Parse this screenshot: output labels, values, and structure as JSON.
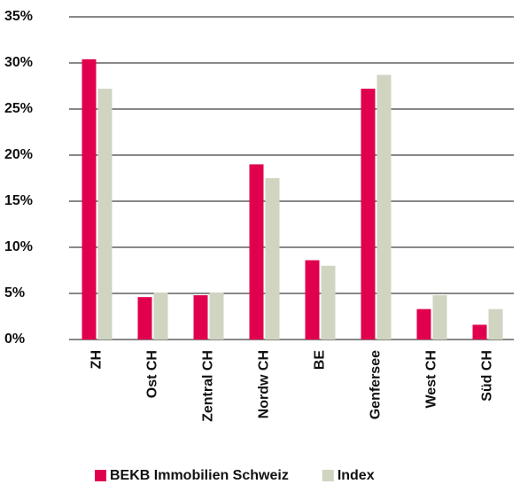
{
  "chart_data": {
    "type": "bar",
    "categories": [
      "ZH",
      "Ost CH",
      "Zentral CH",
      "Nordw CH",
      "BE",
      "Genfersee",
      "West CH",
      "Süd CH"
    ],
    "series": [
      {
        "name": "BEKB Immobilien Schweiz",
        "color": "#e0004d",
        "values": [
          30.4,
          4.6,
          4.8,
          19.0,
          8.6,
          27.2,
          3.3,
          1.6
        ]
      },
      {
        "name": "Index",
        "color": "#cfd5c0",
        "values": [
          27.2,
          5.1,
          5.1,
          17.5,
          8.0,
          28.7,
          4.8,
          3.3
        ]
      }
    ],
    "ylim": [
      0,
      35
    ],
    "yticks": [
      {
        "value": 0,
        "label": "0%"
      },
      {
        "value": 5,
        "label": "5%"
      },
      {
        "value": 10,
        "label": "10%"
      },
      {
        "value": 15,
        "label": "15%"
      },
      {
        "value": 20,
        "label": "20%"
      },
      {
        "value": 25,
        "label": "25%"
      },
      {
        "value": 30,
        "label": "30%"
      },
      {
        "value": 35,
        "label": "35%"
      }
    ],
    "grid": true,
    "legend": "bottom"
  }
}
